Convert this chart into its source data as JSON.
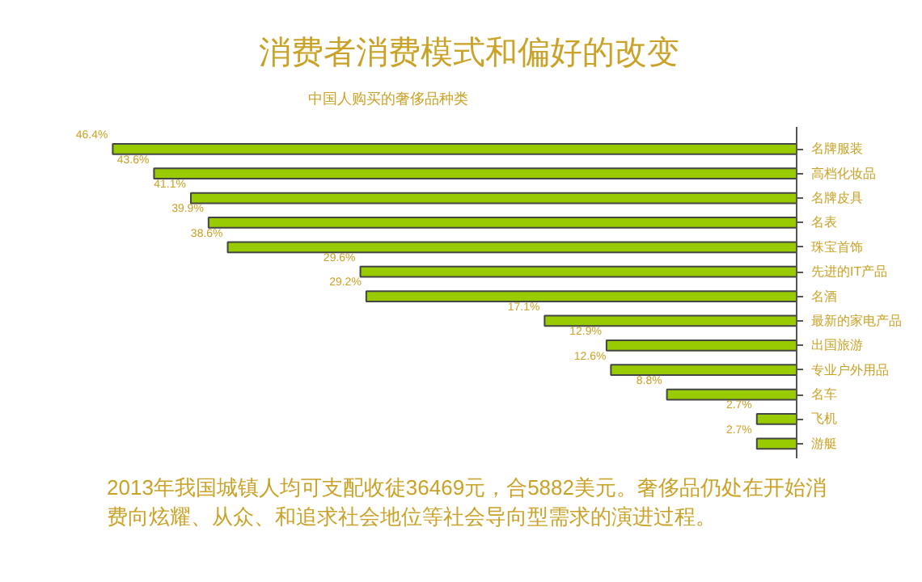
{
  "chart_data": {
    "type": "bar",
    "title": "消费者消费模式和偏好的改变",
    "subtitle": "中国人购买的奢侈品种类",
    "categories": [
      "名牌服装",
      "高档化妆品",
      "名牌皮具",
      "名表",
      "珠宝首饰",
      "先进的IT产品",
      "名酒",
      "最新的家电产品",
      "出国旅游",
      "专业户外用品",
      "名车",
      "飞机",
      "游艇"
    ],
    "values": [
      46.4,
      43.6,
      41.1,
      39.9,
      38.6,
      29.6,
      29.2,
      17.1,
      12.9,
      12.6,
      8.8,
      2.7,
      2.7
    ],
    "value_labels": [
      "46.4%",
      "43.6%",
      "41.1%",
      "39.9%",
      "38.6%",
      "29.6%",
      "29.2%",
      "17.1%",
      "12.9%",
      "12.6%",
      "8.8%",
      "2.7%",
      "2.7%"
    ],
    "color": "#99cc00",
    "orientation": "horizontal",
    "grid": false,
    "annotations": [
      "2013年我国城镇人均可支配收徒36469元，合5882美元。奢侈品仍处在开始消费向炫耀、从众、和追求社会地位等社会导向型需求的演进过程。"
    ]
  }
}
